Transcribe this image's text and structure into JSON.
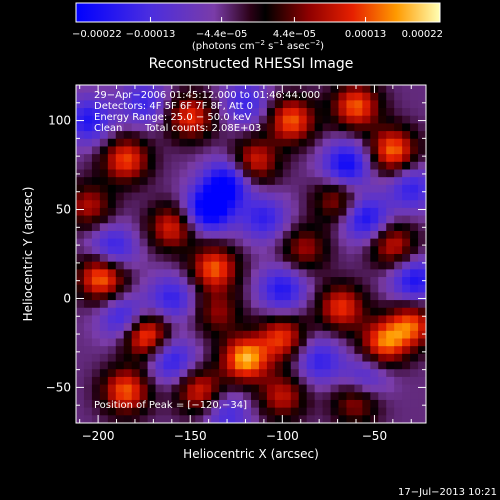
{
  "chart_data": {
    "type": "heatmap",
    "title": "Reconstructed RHESSI Image",
    "xlabel": "Heliocentric X (arcsec)",
    "ylabel": "Heliocentric Y (arcsec)",
    "xlim": [
      -212,
      -22
    ],
    "ylim": [
      -70,
      120
    ],
    "x_ticks": [
      -200,
      -150,
      -100,
      -50
    ],
    "x_tick_labels": [
      "−200",
      "−150",
      "−100",
      "−50"
    ],
    "y_ticks": [
      -50,
      0,
      50,
      100
    ],
    "y_tick_labels": [
      "−50",
      "0",
      "50",
      "100"
    ],
    "colorbar": {
      "range": [
        -0.00022,
        0.00022
      ],
      "ticks": [
        -0.00022,
        -0.00013,
        -4.4e-05,
        4.4e-05,
        0.00013,
        0.00022
      ],
      "tick_labels": [
        "−0.00022",
        "−0.00013",
        "−4.4e−05",
        "4.4e−05",
        "0.00013",
        "0.00022"
      ],
      "units_prefix": "(photons cm",
      "units_exp1": "−2",
      "units_mid": " s",
      "units_exp2": "−1",
      "units_mid2": " asec",
      "units_exp3": "−2",
      "units_suffix": ")"
    },
    "annotations": {
      "time_range": "29−Apr−2006 01:45:12.000 to 01:46:44.000",
      "detectors": "Detectors: 4F 5F 6F 7F 8F, Att 0",
      "energy_range": "Energy Range: 25.0 − 50.0 keV",
      "method": "Clean",
      "total_counts": "Total counts: 2.08E+03",
      "peak_position": "Position of Peak = [−120,−34]"
    },
    "grid": false,
    "sources": [
      {
        "x": -175,
        "y": -20,
        "v": 0.00022
      },
      {
        "x": -120,
        "y": -34,
        "v": 0.00022
      },
      {
        "x": -100,
        "y": -22,
        "v": 0.00016
      },
      {
        "x": -198,
        "y": 12,
        "v": 0.0002
      },
      {
        "x": -137,
        "y": 17,
        "v": 0.00018
      },
      {
        "x": -160,
        "y": 40,
        "v": 0.00015
      },
      {
        "x": -185,
        "y": 78,
        "v": 0.00017
      },
      {
        "x": -150,
        "y": 102,
        "v": 0.00016
      },
      {
        "x": -95,
        "y": 100,
        "v": 0.00018
      },
      {
        "x": -115,
        "y": 77,
        "v": 0.00015
      },
      {
        "x": -60,
        "y": 108,
        "v": 0.00018
      },
      {
        "x": -40,
        "y": 83,
        "v": 0.00019
      },
      {
        "x": -70,
        "y": 55,
        "v": 0.00012
      },
      {
        "x": -40,
        "y": 30,
        "v": 0.00014
      },
      {
        "x": -88,
        "y": 28,
        "v": 0.00011
      },
      {
        "x": -68,
        "y": -5,
        "v": 0.00016
      },
      {
        "x": -45,
        "y": -25,
        "v": 0.00018
      },
      {
        "x": -30,
        "y": -15,
        "v": 0.00017
      },
      {
        "x": -185,
        "y": -52,
        "v": 0.00018
      },
      {
        "x": -145,
        "y": -52,
        "v": 0.00015
      },
      {
        "x": -100,
        "y": -55,
        "v": 0.00013
      },
      {
        "x": -60,
        "y": -58,
        "v": 0.00012
      },
      {
        "x": -205,
        "y": 52,
        "v": 0.00012
      },
      {
        "x": -135,
        "y": -8,
        "v": 0.0001
      },
      {
        "x": -192,
        "y": 28,
        "v": -0.00013
      },
      {
        "x": -140,
        "y": 50,
        "v": -0.00021
      },
      {
        "x": -130,
        "y": 65,
        "v": -0.00018
      },
      {
        "x": -65,
        "y": 75,
        "v": -0.00017
      },
      {
        "x": -55,
        "y": 45,
        "v": -0.00016
      },
      {
        "x": -100,
        "y": 5,
        "v": -0.00014
      },
      {
        "x": -160,
        "y": 0,
        "v": -0.00012
      },
      {
        "x": -185,
        "y": -12,
        "v": -0.00015
      },
      {
        "x": -28,
        "y": 10,
        "v": -0.00015
      },
      {
        "x": -80,
        "y": -35,
        "v": -0.00012
      },
      {
        "x": -160,
        "y": -35,
        "v": -0.00013
      },
      {
        "x": -205,
        "y": 100,
        "v": -0.00014
      },
      {
        "x": -110,
        "y": 45,
        "v": -0.00012
      },
      {
        "x": -30,
        "y": 62,
        "v": -0.00012
      },
      {
        "x": -120,
        "y": 110,
        "v": -0.00011
      },
      {
        "x": -175,
        "y": 110,
        "v": -0.00011
      },
      {
        "x": -55,
        "y": -45,
        "v": -0.0001
      },
      {
        "x": -130,
        "y": -65,
        "v": -0.0001
      }
    ]
  },
  "date_stamp": "17−Jul−2013 10:21"
}
